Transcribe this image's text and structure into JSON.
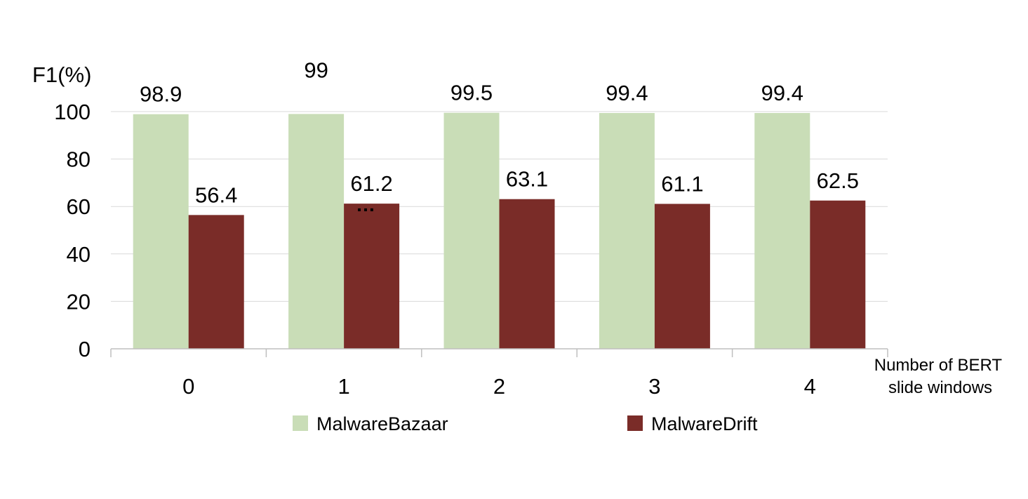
{
  "chart_data": {
    "type": "bar",
    "ylabel": "F1(%)",
    "xlabel": [
      "Number of BERT",
      "slide windows"
    ],
    "categories": [
      "0",
      "1",
      "2",
      "3",
      "4"
    ],
    "ylim": [
      0,
      100
    ],
    "yticks": [
      0,
      20,
      40,
      60,
      80,
      100
    ],
    "grid": true,
    "legend_position": "bottom",
    "series": [
      {
        "name": "MalwareBazaar",
        "color": "#c9ddb7",
        "values": [
          98.9,
          99,
          99.5,
          99.4,
          99.4
        ],
        "labels": [
          "98.9",
          "99",
          "99.5",
          "99.4",
          "99.4"
        ]
      },
      {
        "name": "MalwareDrift",
        "color": "#7a2c28",
        "values": [
          56.4,
          61.2,
          63.1,
          61.1,
          62.5
        ],
        "labels": [
          "56.4",
          "61.2",
          "63.1",
          "61.1",
          "62.5"
        ]
      }
    ],
    "annotations": [
      "…"
    ]
  }
}
